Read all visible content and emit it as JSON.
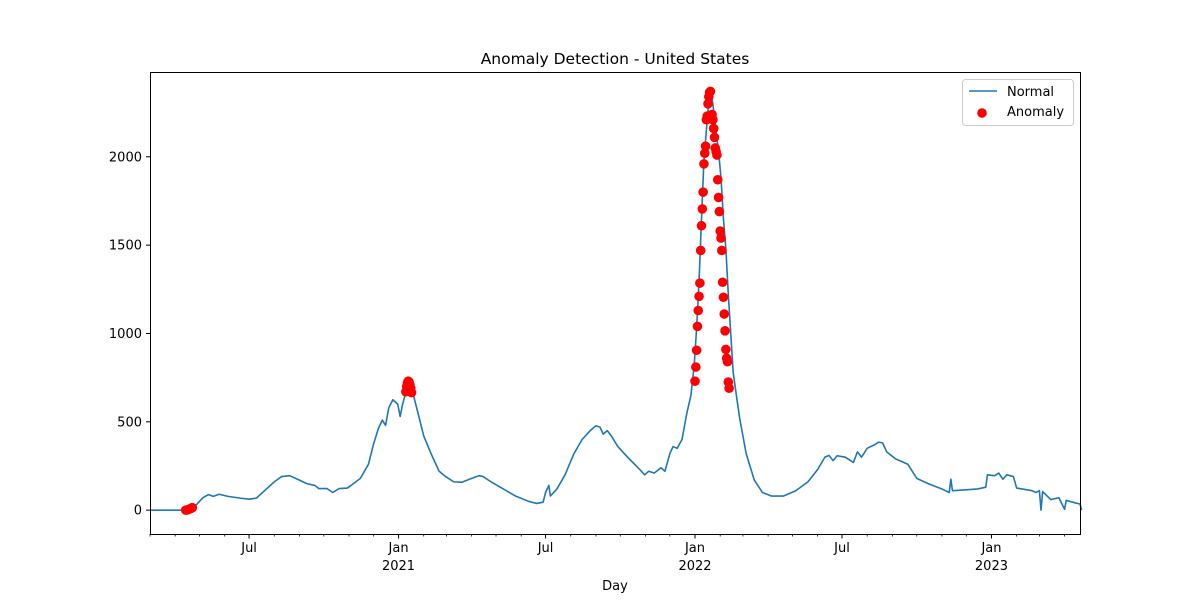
{
  "chart_data": {
    "type": "line",
    "title": "Anomaly Detection - United States",
    "xlabel": "Day",
    "ylabel": "",
    "xlim": [
      "2020-03-01",
      "2023-04-20"
    ],
    "ylim": [
      -135,
      2480
    ],
    "y_ticks": [
      0,
      500,
      1000,
      1500,
      2000
    ],
    "x_ticks": [
      {
        "date": "2020-07-01",
        "label": "Jul",
        "sublabel": ""
      },
      {
        "date": "2021-01-01",
        "label": "Jan",
        "sublabel": "2021"
      },
      {
        "date": "2021-07-01",
        "label": "Jul",
        "sublabel": ""
      },
      {
        "date": "2022-01-01",
        "label": "Jan",
        "sublabel": "2022"
      },
      {
        "date": "2022-07-01",
        "label": "Jul",
        "sublabel": ""
      },
      {
        "date": "2023-01-01",
        "label": "Jan",
        "sublabel": "2023"
      }
    ],
    "legend_position": "top-right",
    "grid": false,
    "series": [
      {
        "name": "Normal",
        "kind": "line",
        "color": "#1f77b4",
        "points": [
          [
            "2020-03-01",
            0
          ],
          [
            "2020-04-10",
            0
          ],
          [
            "2020-04-20",
            8
          ],
          [
            "2020-04-27",
            30
          ],
          [
            "2020-05-05",
            70
          ],
          [
            "2020-05-12",
            88
          ],
          [
            "2020-05-18",
            78
          ],
          [
            "2020-05-25",
            90
          ],
          [
            "2020-06-05",
            78
          ],
          [
            "2020-06-20",
            68
          ],
          [
            "2020-07-01",
            62
          ],
          [
            "2020-07-10",
            68
          ],
          [
            "2020-07-20",
            110
          ],
          [
            "2020-08-01",
            160
          ],
          [
            "2020-08-10",
            190
          ],
          [
            "2020-08-20",
            195
          ],
          [
            "2020-09-01",
            170
          ],
          [
            "2020-09-10",
            150
          ],
          [
            "2020-09-20",
            140
          ],
          [
            "2020-09-25",
            122
          ],
          [
            "2020-10-05",
            122
          ],
          [
            "2020-10-12",
            100
          ],
          [
            "2020-10-20",
            122
          ],
          [
            "2020-10-30",
            125
          ],
          [
            "2020-11-05",
            145
          ],
          [
            "2020-11-15",
            180
          ],
          [
            "2020-11-25",
            260
          ],
          [
            "2020-12-01",
            370
          ],
          [
            "2020-12-07",
            460
          ],
          [
            "2020-12-12",
            510
          ],
          [
            "2020-12-16",
            480
          ],
          [
            "2020-12-20",
            580
          ],
          [
            "2020-12-25",
            625
          ],
          [
            "2020-12-31",
            600
          ],
          [
            "2021-01-03",
            530
          ],
          [
            "2021-01-06",
            600
          ],
          [
            "2021-01-09",
            650
          ],
          [
            "2021-01-13",
            710
          ],
          [
            "2021-01-17",
            700
          ],
          [
            "2021-01-21",
            620
          ],
          [
            "2021-01-26",
            530
          ],
          [
            "2021-02-01",
            420
          ],
          [
            "2021-02-10",
            320
          ],
          [
            "2021-02-20",
            220
          ],
          [
            "2021-02-28",
            190
          ],
          [
            "2021-03-10",
            160
          ],
          [
            "2021-03-20",
            158
          ],
          [
            "2021-04-01",
            180
          ],
          [
            "2021-04-10",
            195
          ],
          [
            "2021-04-15",
            190
          ],
          [
            "2021-04-25",
            160
          ],
          [
            "2021-05-10",
            120
          ],
          [
            "2021-05-25",
            80
          ],
          [
            "2021-06-10",
            50
          ],
          [
            "2021-06-20",
            38
          ],
          [
            "2021-06-28",
            45
          ],
          [
            "2021-07-01",
            100
          ],
          [
            "2021-07-05",
            140
          ],
          [
            "2021-07-07",
            80
          ],
          [
            "2021-07-15",
            120
          ],
          [
            "2021-07-25",
            200
          ],
          [
            "2021-08-05",
            320
          ],
          [
            "2021-08-15",
            400
          ],
          [
            "2021-08-25",
            450
          ],
          [
            "2021-09-01",
            478
          ],
          [
            "2021-09-06",
            470
          ],
          [
            "2021-09-10",
            430
          ],
          [
            "2021-09-15",
            450
          ],
          [
            "2021-09-20",
            420
          ],
          [
            "2021-09-28",
            360
          ],
          [
            "2021-10-10",
            300
          ],
          [
            "2021-10-25",
            230
          ],
          [
            "2021-10-31",
            200
          ],
          [
            "2021-11-05",
            220
          ],
          [
            "2021-11-12",
            210
          ],
          [
            "2021-11-20",
            240
          ],
          [
            "2021-11-25",
            220
          ],
          [
            "2021-12-01",
            320
          ],
          [
            "2021-12-05",
            360
          ],
          [
            "2021-12-10",
            350
          ],
          [
            "2021-12-16",
            400
          ],
          [
            "2021-12-22",
            550
          ],
          [
            "2021-12-27",
            650
          ],
          [
            "2021-12-31",
            820
          ],
          [
            "2022-01-03",
            1030
          ],
          [
            "2022-01-06",
            1300
          ],
          [
            "2022-01-09",
            1650
          ],
          [
            "2022-01-12",
            1980
          ],
          [
            "2022-01-15",
            2150
          ],
          [
            "2022-01-18",
            2320
          ],
          [
            "2022-01-21",
            2370
          ],
          [
            "2022-01-24",
            2260
          ],
          [
            "2022-01-27",
            2140
          ],
          [
            "2022-01-30",
            2030
          ],
          [
            "2022-02-02",
            1880
          ],
          [
            "2022-02-05",
            1650
          ],
          [
            "2022-02-08",
            1480
          ],
          [
            "2022-02-11",
            1220
          ],
          [
            "2022-02-14",
            1000
          ],
          [
            "2022-02-17",
            780
          ],
          [
            "2022-02-20",
            680
          ],
          [
            "2022-02-25",
            520
          ],
          [
            "2022-03-05",
            320
          ],
          [
            "2022-03-15",
            170
          ],
          [
            "2022-03-25",
            100
          ],
          [
            "2022-04-05",
            80
          ],
          [
            "2022-04-20",
            80
          ],
          [
            "2022-05-05",
            110
          ],
          [
            "2022-05-20",
            160
          ],
          [
            "2022-06-01",
            230
          ],
          [
            "2022-06-10",
            300
          ],
          [
            "2022-06-15",
            310
          ],
          [
            "2022-06-20",
            280
          ],
          [
            "2022-06-25",
            308
          ],
          [
            "2022-07-05",
            300
          ],
          [
            "2022-07-15",
            270
          ],
          [
            "2022-07-20",
            330
          ],
          [
            "2022-07-25",
            300
          ],
          [
            "2022-08-01",
            350
          ],
          [
            "2022-08-10",
            370
          ],
          [
            "2022-08-15",
            385
          ],
          [
            "2022-08-20",
            380
          ],
          [
            "2022-08-25",
            330
          ],
          [
            "2022-09-05",
            290
          ],
          [
            "2022-09-20",
            260
          ],
          [
            "2022-10-01",
            180
          ],
          [
            "2022-10-15",
            150
          ],
          [
            "2022-11-01",
            120
          ],
          [
            "2022-11-10",
            100
          ],
          [
            "2022-11-12",
            175
          ],
          [
            "2022-11-14",
            110
          ],
          [
            "2022-12-01",
            115
          ],
          [
            "2022-12-15",
            120
          ],
          [
            "2022-12-25",
            130
          ],
          [
            "2022-12-27",
            200
          ],
          [
            "2023-01-05",
            195
          ],
          [
            "2023-01-10",
            210
          ],
          [
            "2023-01-15",
            175
          ],
          [
            "2023-01-20",
            200
          ],
          [
            "2023-01-28",
            190
          ],
          [
            "2023-02-01",
            125
          ],
          [
            "2023-02-20",
            110
          ],
          [
            "2023-02-25",
            100
          ],
          [
            "2023-03-01",
            110
          ],
          [
            "2023-03-03",
            0
          ],
          [
            "2023-03-05",
            105
          ],
          [
            "2023-03-15",
            60
          ],
          [
            "2023-03-25",
            70
          ],
          [
            "2023-04-01",
            5
          ],
          [
            "2023-04-03",
            55
          ],
          [
            "2023-04-15",
            40
          ],
          [
            "2023-04-20",
            35
          ],
          [
            "2023-04-22",
            0
          ]
        ]
      },
      {
        "name": "Anomaly",
        "kind": "scatter",
        "color": "#ff0000",
        "points": [
          [
            "2020-04-14",
            0
          ],
          [
            "2020-04-16",
            2
          ],
          [
            "2020-04-18",
            5
          ],
          [
            "2020-04-20",
            9
          ],
          [
            "2020-04-22",
            14
          ],
          [
            "2021-01-10",
            670
          ],
          [
            "2021-01-11",
            700
          ],
          [
            "2021-01-12",
            720
          ],
          [
            "2021-01-13",
            730
          ],
          [
            "2021-01-14",
            725
          ],
          [
            "2021-01-15",
            710
          ],
          [
            "2021-01-16",
            690
          ],
          [
            "2021-01-17",
            665
          ],
          [
            "2022-01-01",
            730
          ],
          [
            "2022-01-02",
            810
          ],
          [
            "2022-01-03",
            905
          ],
          [
            "2022-01-04",
            1040
          ],
          [
            "2022-01-05",
            1130
          ],
          [
            "2022-01-06",
            1210
          ],
          [
            "2022-01-07",
            1285
          ],
          [
            "2022-01-08",
            1470
          ],
          [
            "2022-01-09",
            1610
          ],
          [
            "2022-01-10",
            1705
          ],
          [
            "2022-01-11",
            1800
          ],
          [
            "2022-01-12",
            1960
          ],
          [
            "2022-01-13",
            2020
          ],
          [
            "2022-01-14",
            2060
          ],
          [
            "2022-01-15",
            2210
          ],
          [
            "2022-01-16",
            2230
          ],
          [
            "2022-01-17",
            2300
          ],
          [
            "2022-01-18",
            2340
          ],
          [
            "2022-01-19",
            2365
          ],
          [
            "2022-01-20",
            2370
          ],
          [
            "2022-01-21",
            2230
          ],
          [
            "2022-01-22",
            2240
          ],
          [
            "2022-01-23",
            2210
          ],
          [
            "2022-01-24",
            2160
          ],
          [
            "2022-01-25",
            2110
          ],
          [
            "2022-01-26",
            2050
          ],
          [
            "2022-01-27",
            2030
          ],
          [
            "2022-01-28",
            2010
          ],
          [
            "2022-01-29",
            1870
          ],
          [
            "2022-01-30",
            1770
          ],
          [
            "2022-01-31",
            1690
          ],
          [
            "2022-02-01",
            1580
          ],
          [
            "2022-02-02",
            1540
          ],
          [
            "2022-02-03",
            1470
          ],
          [
            "2022-02-04",
            1290
          ],
          [
            "2022-02-05",
            1205
          ],
          [
            "2022-02-06",
            1110
          ],
          [
            "2022-02-07",
            1015
          ],
          [
            "2022-02-08",
            910
          ],
          [
            "2022-02-09",
            860
          ],
          [
            "2022-02-10",
            840
          ],
          [
            "2022-02-11",
            725
          ],
          [
            "2022-02-12",
            690
          ]
        ]
      }
    ]
  }
}
